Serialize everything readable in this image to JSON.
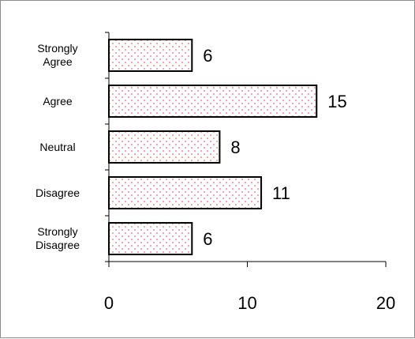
{
  "chart_data": {
    "type": "bar",
    "orientation": "horizontal",
    "categories": [
      "Strongly Agree",
      "Agree",
      "Neutral",
      "Disagree",
      "Strongly Disagree"
    ],
    "category_lines": [
      [
        "Strongly",
        "Agree"
      ],
      [
        "Agree"
      ],
      [
        "Neutral"
      ],
      [
        "Disagree"
      ],
      [
        "Strongly",
        "Disagree"
      ]
    ],
    "values": [
      6,
      15,
      8,
      11,
      6
    ],
    "xlim": [
      0,
      20
    ],
    "xticks": [
      0,
      10,
      20
    ],
    "title": "",
    "xlabel": "",
    "ylabel": "",
    "grid": false,
    "legend": "none",
    "bar_fill": "#ffffff",
    "bar_pattern_color": "#e8413c",
    "bar_stroke": "#000000"
  }
}
